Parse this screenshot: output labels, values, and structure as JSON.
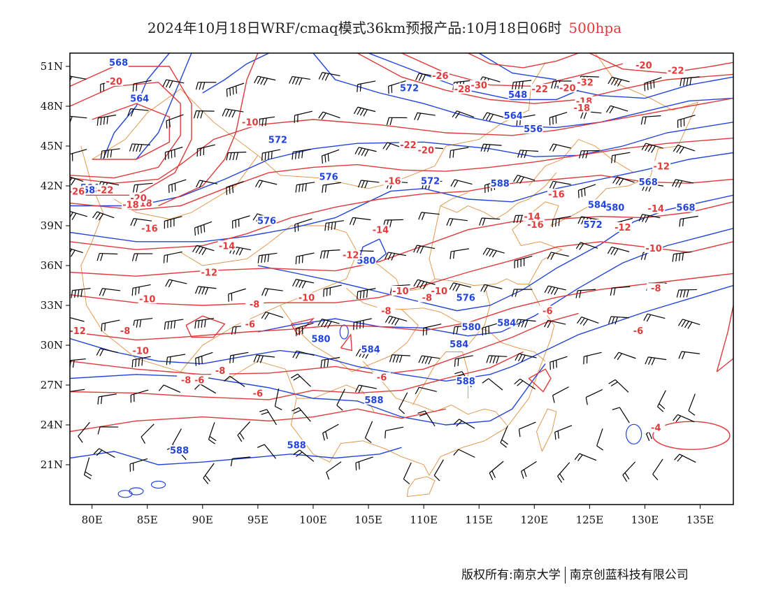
{
  "header": {
    "title": "2024年10月18日WRF/cmaq模式36km预报产品:10月18日06时",
    "level": "500hpa"
  },
  "map": {
    "lon_range": [
      78,
      138
    ],
    "lat_range": [
      18,
      52
    ],
    "lat_ticks": [
      "51N",
      "48N",
      "45N",
      "42N",
      "39N",
      "36N",
      "33N",
      "30N",
      "27N",
      "24N",
      "21N"
    ],
    "lon_ticks": [
      "80E",
      "85E",
      "90E",
      "95E",
      "100E",
      "105E",
      "110E",
      "115E",
      "120E",
      "125E",
      "130E",
      "135E"
    ],
    "height_contour_color": "#2244dd",
    "temperature_contour_color": "#e03a3a",
    "border_color": "#e09040",
    "height_labels": [
      "568",
      "564",
      "572",
      "576",
      "572",
      "576",
      "580",
      "580",
      "584",
      "576",
      "580",
      "584",
      "584",
      "588",
      "588",
      "588",
      "564",
      "588",
      "572",
      "580",
      "584",
      "588",
      "572",
      "568",
      "564",
      "556",
      "548",
      "568",
      "588"
    ],
    "temperature_labels": [
      "-20",
      "-10",
      "-18",
      "-16",
      "-14",
      "-12",
      "-10",
      "-8",
      "-6",
      "-8",
      "-10",
      "-26",
      "-22",
      "-20",
      "-18",
      "-12",
      "-10",
      "-8",
      "-6",
      "-8",
      "-6",
      "-16",
      "-14",
      "-12",
      "-10",
      "-8",
      "-6",
      "-4",
      "-28",
      "-30",
      "-22",
      "-20",
      "-18",
      "-16",
      "-14",
      "-12",
      "-10",
      "-8",
      "-6",
      "-16",
      "-14",
      "-12",
      "-10",
      "-8",
      "-6",
      "-22",
      "-20",
      "-18",
      "-22",
      "-20",
      "-26",
      "-32"
    ]
  },
  "footer": {
    "copyright": "版权所有:南京大学",
    "company": "南京创蓝科技有限公司"
  }
}
